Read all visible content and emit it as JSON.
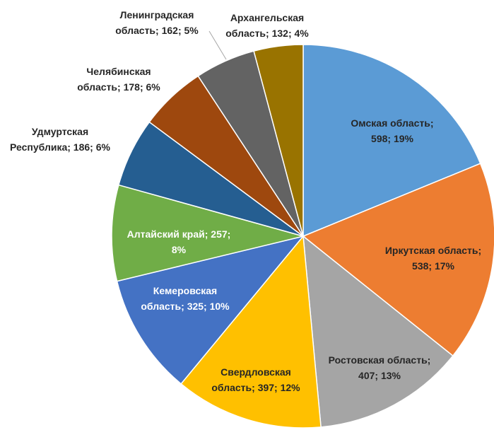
{
  "chart_data": {
    "type": "pie",
    "categories": [
      "Омская область",
      "Иркутская область",
      "Ростовская область",
      "Свердловская область",
      "Кемеровская область",
      "Алтайский край",
      "Удмуртская Республика",
      "Челябинская область",
      "Ленинградская область",
      "Архангельская область"
    ],
    "values": [
      598,
      538,
      407,
      397,
      325,
      257,
      186,
      178,
      162,
      132
    ],
    "value_labels": [
      "Омская область; 598; 19%",
      "Иркутская область; 538; 17%",
      "Ростовская область; 407; 13%",
      "Свердловская область; 397; 12%",
      "Кемеровская область; 325; 10%",
      "Алтайский край; 257; 8%",
      "Удмуртская Республика; 186; 6%",
      "Челябинская область; 178; 6%",
      "Ленинградская область; 162; 5%",
      "Архангельская область; 132; 4%"
    ],
    "colors": [
      "#5b9bd5",
      "#ed7d31",
      "#a5a5a5",
      "#ffc000",
      "#4472c4",
      "#70ad47",
      "#255e91",
      "#9e480e",
      "#636363",
      "#997300"
    ]
  }
}
